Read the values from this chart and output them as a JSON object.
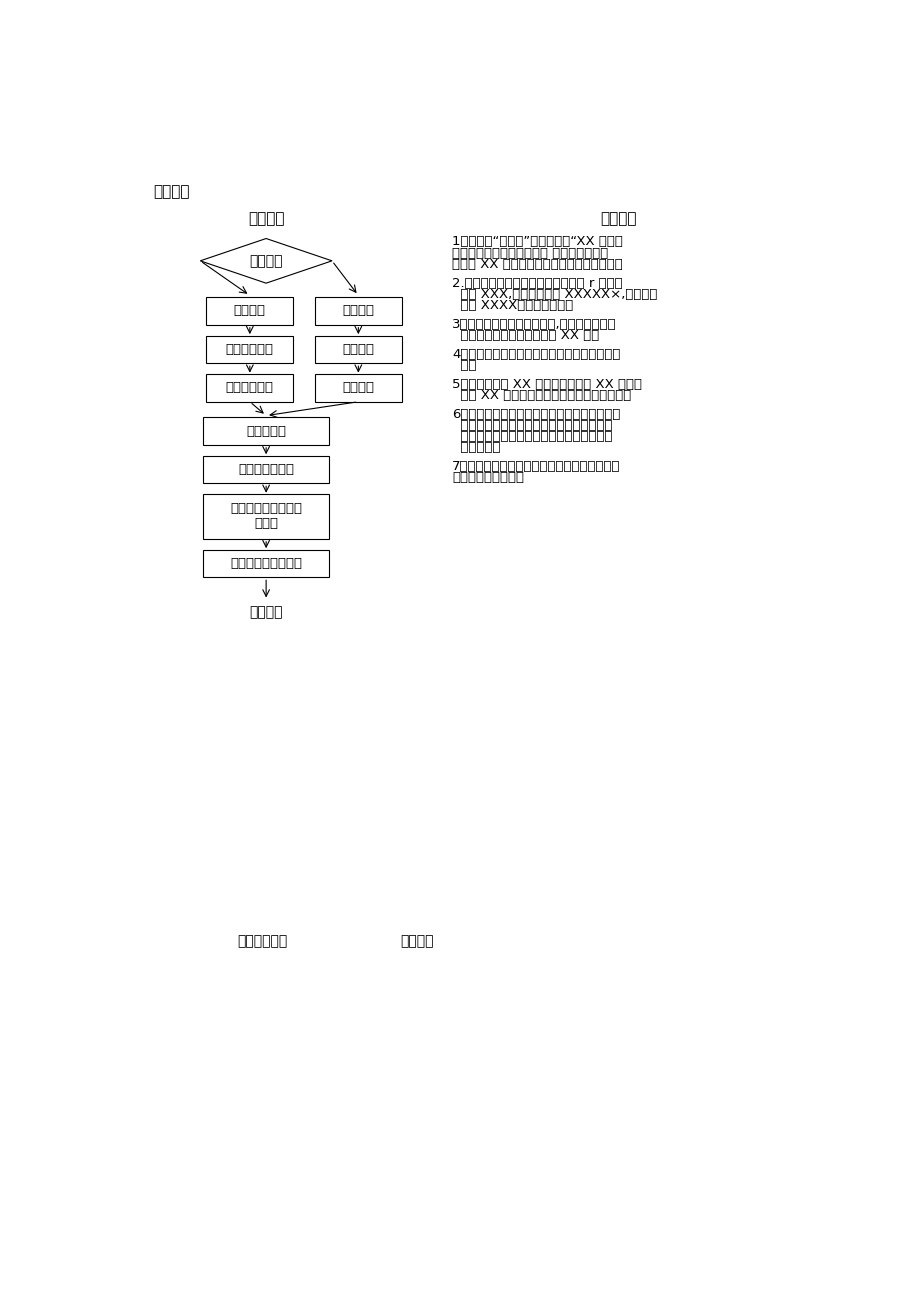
{
  "page_title": "挂号流程",
  "left_section_title": "作业流程",
  "right_section_title": "作业说明",
  "bottom_left_label": "送客用语",
  "bottom_section": "退费作业流程",
  "bottom_section2": "作业内容",
  "diamond_label": "门诊挂号",
  "left_col": [
    "体检套餐",
    "持体检项目单",
    "选择套餐价格"
  ],
  "right_col": [
    "门诊就诊",
    "协助挂号",
    "刷就诊卡"
  ],
  "center_col": [
    "收费处收费",
    "打印发票并盖章",
    "双手奉还顾客挂号单\n或收据",
    "再次确认金额、收据"
  ],
  "right_text_lines": [
    [
      "1．起立，“您好！”接过病历，“XX 小姐，",
      "是挂号吗？哪里不舒服呢？ 我们导医为您选",
      "择的是 XX 主任，主任对这方面比较有经验。"
    ],
    [
      "2.给予挂号卡并向顾客再次查核资料 r 您的姓",
      "  名是 XXX,您的手机号是 XXXXX×,您的就诊",
      "  医师 XXXX」及刷就诊卡。"
    ],
    [
      "3．正确处理顾客挂号或收费,您挂的是主任号",
      "  或专家号，这次的挂号费是 XX 元。"
    ],
    [
      "4．起立，双手接过顾客递过来的钱，并道声谢",
      "  谢。"
    ],
    [
      "5．您好！收您 XX 元，您共消费了 XX 元，应",
      "  找您 XX 元。打印挂号单（收费收据）并盖章"
    ],
    [
      "6．把病历本、挂号单、就诊卡、零钱按顺序辭",
      "  放整齐，起立双手递交于病人，您好这是您",
      "  的病历本、挂号单、就诊卡、请收好找您的",
      "  零钱！谢谢"
    ],
    [
      "7．起立（目视顾客方向）您好！请慢走，并由",
      "导医协助导诊的方向"
    ]
  ],
  "bg_color": "#ffffff",
  "box_facecolor": "#ffffff",
  "box_edgecolor": "#000000",
  "text_color": "#000000"
}
